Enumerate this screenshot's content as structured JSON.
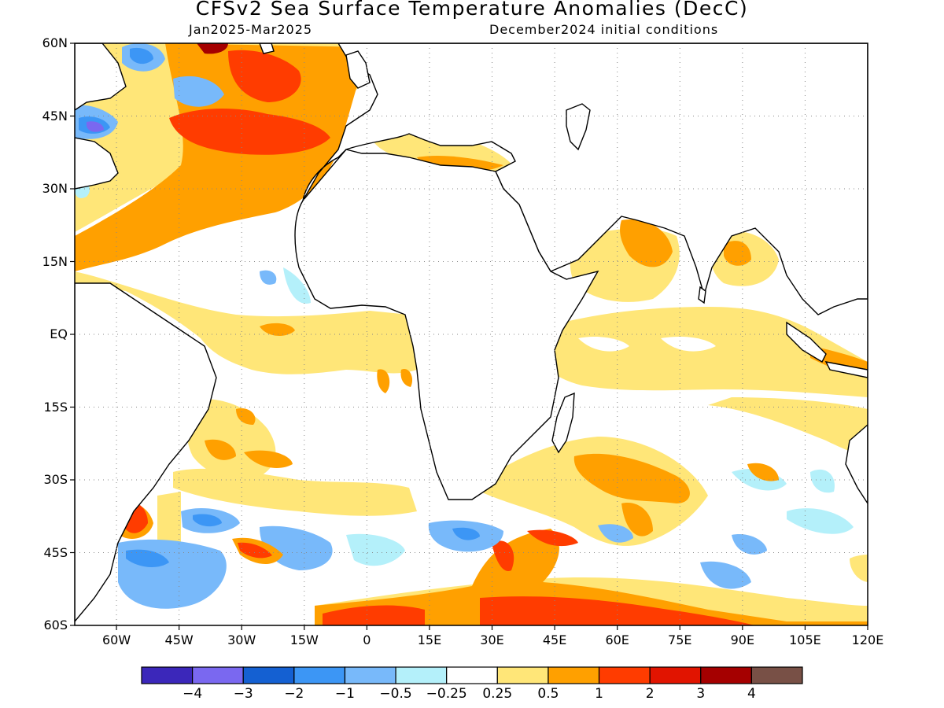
{
  "title": "CFSv2 Sea Surface Temperature Anomalies (DecC)",
  "subtitle_left": "Jan2025-Mar2025",
  "subtitle_right": "December2024 initial conditions",
  "map": {
    "projection": "lat-lon",
    "lon_range": [
      -70,
      120
    ],
    "lat_range": [
      -60,
      60
    ],
    "grid": "dotted",
    "lat_labels": [
      "60N",
      "45N",
      "30N",
      "15N",
      "EQ",
      "15S",
      "30S",
      "45S",
      "60S"
    ],
    "lon_labels": [
      "60W",
      "45W",
      "30W",
      "15W",
      "0",
      "15E",
      "30E",
      "45E",
      "60E",
      "75E",
      "90E",
      "105E",
      "120E"
    ]
  },
  "colorbar": {
    "colors": [
      "#3b27ba",
      "#7a68f0",
      "#1460d2",
      "#3c96f5",
      "#78b9fa",
      "#b4f0fa",
      "#ffffff",
      "#ffe678",
      "#ffa000",
      "#ff3c00",
      "#e11400",
      "#a50000",
      "#785046"
    ],
    "labels": [
      "-4",
      "-3",
      "-2",
      "-1",
      "-0.5",
      "-0.25",
      "0.25",
      "0.5",
      "1",
      "2",
      "3",
      "4"
    ]
  }
}
